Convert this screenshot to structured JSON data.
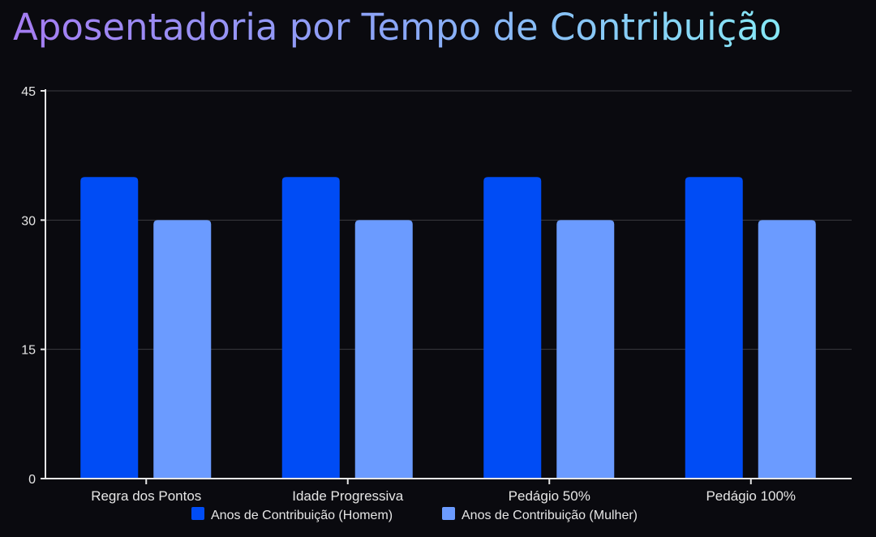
{
  "chart_data": {
    "type": "bar",
    "title": "Aposentadoria por Tempo de Contribuição",
    "xlabel": "",
    "ylabel": "",
    "categories": [
      "Regra dos Pontos",
      "Idade Progressiva",
      "Pedágio 50%",
      "Pedágio 100%"
    ],
    "series": [
      {
        "name": "Anos de Contribuição (Homem)",
        "values": [
          35,
          35,
          35,
          35
        ],
        "color": "#004cf5"
      },
      {
        "name": "Anos de Contribuição (Mulher)",
        "values": [
          30,
          30,
          30,
          30
        ],
        "color": "#6b9bff"
      }
    ],
    "ylim": [
      0,
      45
    ],
    "yticks": [
      0,
      15,
      30,
      45
    ],
    "grid": true,
    "legend": "bottom"
  }
}
